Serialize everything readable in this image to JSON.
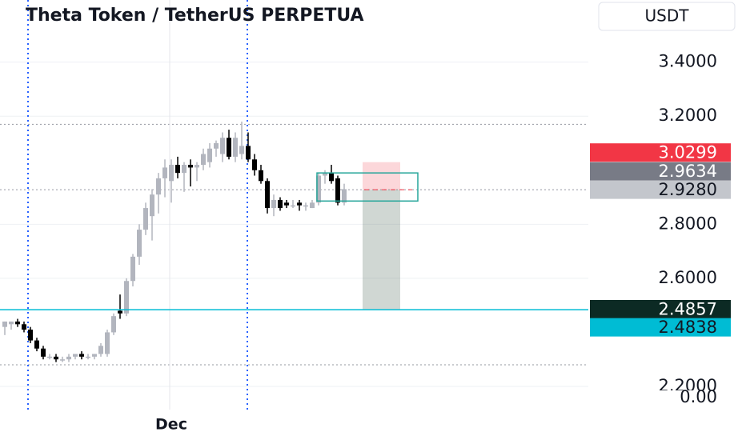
{
  "toolbar": {
    "currency": "USDT"
  },
  "lower_pane": {
    "axis_label": "0.00"
  },
  "chart_data": {
    "type": "candlestick",
    "title": "Theta Token / TetherUS PERPETUA",
    "categories": [
      null,
      null,
      null,
      null,
      null,
      null,
      null,
      null,
      null,
      null,
      null,
      null,
      null,
      null,
      null,
      null,
      null,
      null,
      null,
      null,
      null,
      null,
      null,
      null,
      null,
      null,
      "Dec",
      null,
      null,
      null,
      null,
      null,
      null,
      null,
      null,
      null,
      null,
      null,
      null,
      null,
      null,
      null,
      null,
      null,
      null,
      null,
      null,
      null,
      null,
      null,
      null,
      null,
      null,
      null
    ],
    "open": [
      2.42,
      2.43,
      2.44,
      2.43,
      2.41,
      2.37,
      2.34,
      2.31,
      2.31,
      2.3,
      2.3,
      2.31,
      2.32,
      2.31,
      2.31,
      2.32,
      2.32,
      2.4,
      2.48,
      2.47,
      2.59,
      2.68,
      2.78,
      2.83,
      2.91,
      2.97,
      2.96,
      3.02,
      2.99,
      3.02,
      3.01,
      3.02,
      3.03,
      3.08,
      3.06,
      3.12,
      3.05,
      3.06,
      3.09,
      3.04,
      3.0,
      2.96,
      2.86,
      2.89,
      2.88,
      2.87,
      2.88,
      2.87,
      2.86,
      2.88,
      2.98,
      2.99,
      2.97,
      2.88
    ],
    "high": [
      2.44,
      2.44,
      2.45,
      2.44,
      2.42,
      2.38,
      2.35,
      2.32,
      2.32,
      2.31,
      2.32,
      2.32,
      2.33,
      2.32,
      2.32,
      2.36,
      2.41,
      2.47,
      2.54,
      2.6,
      2.69,
      2.8,
      2.88,
      2.93,
      2.99,
      3.04,
      3.04,
      3.05,
      3.03,
      3.04,
      3.03,
      3.08,
      3.1,
      3.11,
      3.14,
      3.15,
      3.14,
      3.18,
      3.14,
      3.06,
      3.02,
      2.97,
      2.91,
      2.9,
      2.89,
      2.89,
      2.89,
      2.88,
      2.89,
      2.99,
      3.0,
      3.02,
      2.98,
      2.95
    ],
    "low": [
      2.39,
      2.41,
      2.42,
      2.4,
      2.36,
      2.33,
      2.3,
      2.3,
      2.29,
      2.29,
      2.29,
      2.3,
      2.3,
      2.3,
      2.3,
      2.31,
      2.31,
      2.39,
      2.45,
      2.46,
      2.57,
      2.65,
      2.76,
      2.74,
      2.84,
      2.9,
      2.88,
      2.97,
      2.92,
      2.94,
      2.96,
      3.0,
      3.01,
      3.05,
      3.03,
      3.04,
      3.03,
      3.04,
      3.03,
      2.98,
      2.95,
      2.84,
      2.83,
      2.85,
      2.86,
      2.86,
      2.85,
      2.85,
      2.86,
      2.87,
      2.95,
      2.95,
      2.87,
      2.87
    ],
    "close": [
      2.44,
      2.44,
      2.43,
      2.41,
      2.37,
      2.34,
      2.31,
      2.31,
      2.3,
      2.3,
      2.31,
      2.32,
      2.31,
      2.31,
      2.32,
      2.35,
      2.4,
      2.46,
      2.47,
      2.59,
      2.68,
      2.78,
      2.86,
      2.91,
      2.97,
      3.01,
      3.02,
      2.99,
      3.02,
      3.01,
      3.02,
      3.06,
      3.08,
      3.1,
      3.12,
      3.05,
      3.12,
      3.09,
      3.04,
      3.0,
      2.96,
      2.86,
      2.89,
      2.86,
      2.87,
      2.87,
      2.87,
      2.87,
      2.88,
      2.98,
      2.99,
      2.96,
      2.88,
      2.93
    ],
    "up_color": "#b2b5be",
    "down_color": "#000000",
    "ylim": [
      2.12,
      3.63
    ],
    "yticks": [
      {
        "value": 3.4,
        "label": "3.4000"
      },
      {
        "value": 3.2,
        "label": "3.2000"
      },
      {
        "value": 2.8,
        "label": "2.8000"
      },
      {
        "value": 2.6,
        "label": "2.6000"
      },
      {
        "value": 2.2,
        "label": "2.2000"
      }
    ],
    "grid": true,
    "horizontal_levels": [
      3.17,
      2.28
    ],
    "range_box": {
      "top": 2.99,
      "bottom": 2.886,
      "color": "#26a69a"
    },
    "price_labels": [
      {
        "value": 3.0299,
        "label": "3.0299",
        "color": "#f23645",
        "text_color": "#ffffff"
      },
      {
        "value": 2.9634,
        "label": "2.9634",
        "color": "#787b86",
        "text_color": "#ffffff"
      },
      {
        "value": 2.928,
        "label": "2.9280",
        "color": "#c3c6cc",
        "text_color": "#131722"
      },
      {
        "value": 2.4857,
        "label": "2.4857",
        "color": "#0c2a24",
        "text_color": "#ffffff"
      },
      {
        "value": 2.4838,
        "label": "2.4838",
        "color": "#00bcd4",
        "text_color": "#131722"
      }
    ]
  }
}
